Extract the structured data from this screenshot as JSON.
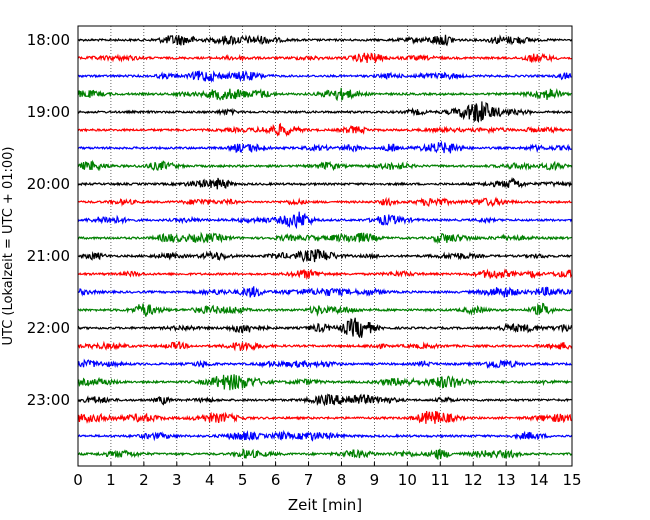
{
  "chart_data": {
    "type": "line",
    "subtype": "helicorder",
    "title": "",
    "xlabel": "Zeit  [min]",
    "ylabel": "UTC (Lokalzeit = UTC + 01:00)",
    "xlim": [
      0,
      15
    ],
    "x_ticks": [
      "0",
      "1",
      "2",
      "3",
      "4",
      "5",
      "6",
      "7",
      "8",
      "9",
      "10",
      "11",
      "12",
      "13",
      "14",
      "15"
    ],
    "y_tick_labels": [
      "18:00",
      "19:00",
      "20:00",
      "21:00",
      "22:00",
      "23:00"
    ],
    "trace_interval_min": 15,
    "start_time": "18:00",
    "trace_count": 24,
    "color_cycle": [
      "#000000",
      "#ff0000",
      "#0000ff",
      "#008000"
    ],
    "vertical_grid": "dotted",
    "event": {
      "trace_index": 4,
      "x_start_min": 11.8,
      "x_peak_min": 12.3,
      "x_end_min": 13.8
    }
  }
}
